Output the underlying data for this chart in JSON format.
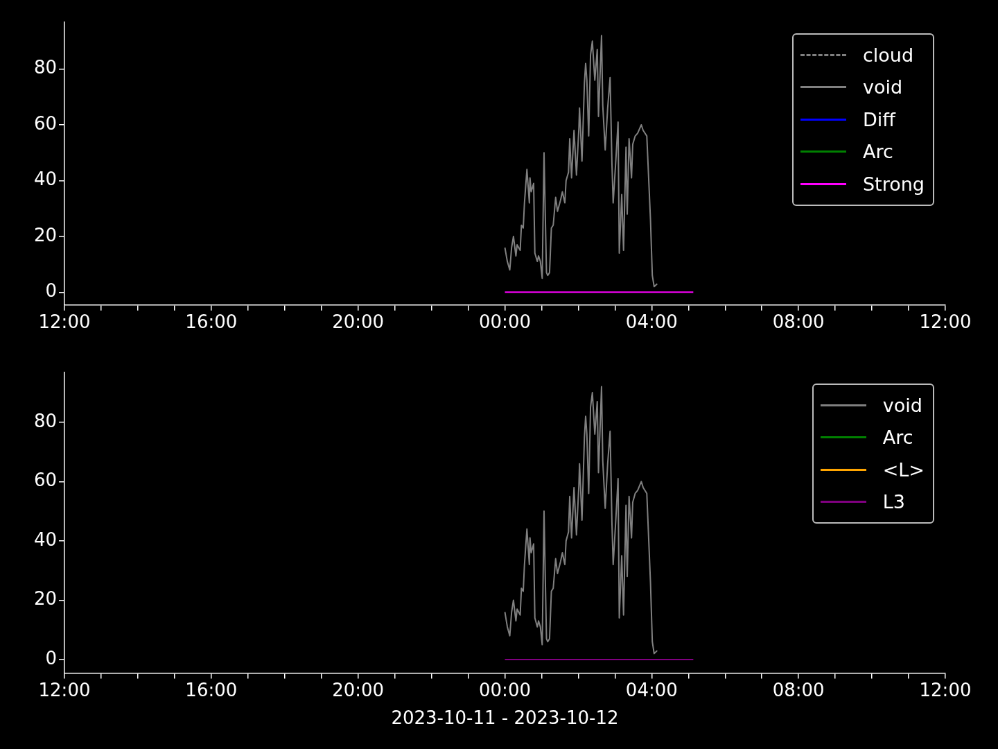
{
  "chart_data": [
    {
      "type": "line",
      "marker": "none",
      "grid": false,
      "legend": "top right",
      "xlim": [
        "2023-10-11T12:00",
        "2023-10-12T12:00"
      ],
      "xticks": [
        {
          "value": "2023-10-11T12:00",
          "label": "12:00"
        },
        {
          "value": "2023-10-11T13:00",
          "label": null
        },
        {
          "value": "2023-10-11T14:00",
          "label": null
        },
        {
          "value": "2023-10-11T15:00",
          "label": null
        },
        {
          "value": "2023-10-11T16:00",
          "label": "16:00"
        },
        {
          "value": "2023-10-11T17:00",
          "label": null
        },
        {
          "value": "2023-10-11T18:00",
          "label": null
        },
        {
          "value": "2023-10-11T19:00",
          "label": null
        },
        {
          "value": "2023-10-11T20:00",
          "label": "20:00"
        },
        {
          "value": "2023-10-11T21:00",
          "label": null
        },
        {
          "value": "2023-10-11T22:00",
          "label": null
        },
        {
          "value": "2023-10-11T23:00",
          "label": null
        },
        {
          "value": "2023-10-12T00:00",
          "label": "00:00"
        },
        {
          "value": "2023-10-12T01:00",
          "label": null
        },
        {
          "value": "2023-10-12T02:00",
          "label": null
        },
        {
          "value": "2023-10-12T03:00",
          "label": null
        },
        {
          "value": "2023-10-12T04:00",
          "label": "04:00"
        },
        {
          "value": "2023-10-12T05:00",
          "label": null
        },
        {
          "value": "2023-10-12T06:00",
          "label": null
        },
        {
          "value": "2023-10-12T07:00",
          "label": null
        },
        {
          "value": "2023-10-12T08:00",
          "label": "08:00"
        },
        {
          "value": "2023-10-12T09:00",
          "label": null
        },
        {
          "value": "2023-10-12T10:00",
          "label": null
        },
        {
          "value": "2023-10-12T11:00",
          "label": null
        },
        {
          "value": "2023-10-12T12:00",
          "label": "12:00"
        }
      ],
      "ylim": [
        -4.6,
        96.8
      ],
      "yticks": [
        0,
        20,
        40,
        60,
        80
      ],
      "x": [
        "2023-10-12T00:00",
        "2023-10-12T00:04",
        "2023-10-12T00:08",
        "2023-10-12T00:11",
        "2023-10-12T00:14",
        "2023-10-12T00:18",
        "2023-10-12T00:20",
        "2023-10-12T00:25",
        "2023-10-12T00:27",
        "2023-10-12T00:30",
        "2023-10-12T00:32",
        "2023-10-12T00:36",
        "2023-10-12T00:40",
        "2023-10-12T00:41",
        "2023-10-12T00:43",
        "2023-10-12T00:47",
        "2023-10-12T00:49",
        "2023-10-12T00:53",
        "2023-10-12T00:55",
        "2023-10-12T00:58",
        "2023-10-12T01:01",
        "2023-10-12T01:04",
        "2023-10-12T01:06",
        "2023-10-12T01:08",
        "2023-10-12T01:10",
        "2023-10-12T01:13",
        "2023-10-12T01:16",
        "2023-10-12T01:19",
        "2023-10-12T01:23",
        "2023-10-12T01:26",
        "2023-10-12T01:31",
        "2023-10-12T01:34",
        "2023-10-12T01:38",
        "2023-10-12T01:40",
        "2023-10-12T01:44",
        "2023-10-12T01:46",
        "2023-10-12T01:49",
        "2023-10-12T01:53",
        "2023-10-12T01:57",
        "2023-10-12T02:01",
        "2023-10-12T02:02",
        "2023-10-12T02:06",
        "2023-10-12T02:10",
        "2023-10-12T02:12",
        "2023-10-12T02:14",
        "2023-10-12T02:17",
        "2023-10-12T02:20",
        "2023-10-12T02:23",
        "2023-10-12T02:27",
        "2023-10-12T02:31",
        "2023-10-12T02:33",
        "2023-10-12T02:38",
        "2023-10-12T02:40",
        "2023-10-12T02:44",
        "2023-10-12T02:48",
        "2023-10-12T02:52",
        "2023-10-12T02:55",
        "2023-10-12T02:57",
        "2023-10-12T03:01",
        "2023-10-12T03:05",
        "2023-10-12T03:07",
        "2023-10-12T03:11",
        "2023-10-12T03:14",
        "2023-10-12T03:18",
        "2023-10-12T03:20",
        "2023-10-12T03:23",
        "2023-10-12T03:27",
        "2023-10-12T03:29",
        "2023-10-12T03:33",
        "2023-10-12T03:37",
        "2023-10-12T03:43",
        "2023-10-12T03:46",
        "2023-10-12T03:52",
        "2023-10-12T03:54",
        "2023-10-12T03:58",
        "2023-10-12T04:01",
        "2023-10-12T04:04",
        "2023-10-12T04:09"
      ],
      "series": [
        {
          "name": "cloud",
          "color": "#808080",
          "line_style": "dashed",
          "values": [
            null,
            null,
            null,
            null,
            null,
            null,
            null,
            null,
            null,
            null,
            null,
            null,
            null,
            null,
            null,
            null,
            null,
            null,
            null,
            null,
            null,
            null,
            null,
            null,
            null,
            null,
            null,
            null,
            null,
            null,
            null,
            null,
            null,
            null,
            null,
            null,
            null,
            null,
            null,
            null,
            null,
            null,
            null,
            null,
            null,
            null,
            null,
            null,
            null,
            null,
            null,
            null,
            null,
            null,
            null,
            null,
            null,
            null,
            null,
            null,
            null,
            null,
            null,
            null,
            null,
            null,
            null,
            null,
            null,
            null,
            null,
            null,
            null,
            null,
            null,
            null,
            null,
            null
          ]
        },
        {
          "name": "void",
          "color": "#808080",
          "values": [
            16,
            11,
            8,
            16,
            20,
            13,
            17,
            15,
            24,
            23,
            32,
            44,
            32,
            41,
            36,
            39,
            14,
            11,
            13,
            11,
            5,
            50,
            28,
            7,
            6,
            7,
            23,
            24,
            34,
            29,
            33,
            36,
            32,
            40,
            43,
            55,
            41,
            58,
            42,
            59,
            66,
            47,
            75,
            82,
            76,
            56,
            85,
            90,
            76,
            87,
            63,
            92,
            67,
            51,
            66,
            77,
            46,
            32,
            46,
            61,
            14,
            35,
            15,
            52,
            28,
            55,
            41,
            53,
            56,
            57,
            60,
            58,
            56,
            46,
            26,
            6,
            2,
            3
          ]
        },
        {
          "name": "Diff",
          "color": "#0000ff",
          "values": [
            null,
            null,
            null,
            null,
            null,
            null,
            null,
            null,
            null,
            null,
            null,
            null,
            null,
            null,
            null,
            null,
            null,
            null,
            null,
            null,
            null,
            null,
            null,
            null,
            null,
            null,
            null,
            null,
            null,
            null,
            null,
            null,
            null,
            null,
            null,
            null,
            null,
            null,
            null,
            null,
            null,
            null,
            null,
            null,
            null,
            null,
            null,
            null,
            null,
            null,
            null,
            null,
            null,
            null,
            null,
            null,
            null,
            null,
            null,
            null,
            null,
            null,
            null,
            null,
            null,
            null,
            null,
            null,
            null,
            null,
            null,
            null,
            null,
            null,
            null,
            null,
            null,
            null
          ]
        },
        {
          "name": "Arc",
          "color": "#008000",
          "values": [
            null,
            null,
            null,
            null,
            null,
            null,
            null,
            null,
            null,
            null,
            null,
            null,
            null,
            null,
            null,
            null,
            null,
            null,
            null,
            null,
            null,
            null,
            null,
            null,
            null,
            null,
            null,
            null,
            null,
            null,
            null,
            null,
            null,
            null,
            null,
            null,
            null,
            null,
            null,
            null,
            null,
            null,
            null,
            null,
            null,
            null,
            null,
            null,
            null,
            null,
            null,
            null,
            null,
            null,
            null,
            null,
            null,
            null,
            null,
            null,
            null,
            null,
            null,
            null,
            null,
            null,
            null,
            null,
            null,
            null,
            null,
            null,
            null,
            null,
            null,
            null,
            null,
            null
          ]
        },
        {
          "name": "Strong",
          "color": "#ff00ff",
          "x": [
            "2023-10-12T00:00",
            "2023-10-12T05:08"
          ],
          "values": [
            0,
            0
          ]
        }
      ]
    },
    {
      "type": "line",
      "marker": "none",
      "grid": false,
      "legend": "top right",
      "xlabel": "2023-10-11 - 2023-10-12",
      "xlim": [
        "2023-10-11T12:00",
        "2023-10-12T12:00"
      ],
      "xticks": [
        {
          "value": "2023-10-11T12:00",
          "label": "12:00"
        },
        {
          "value": "2023-10-11T13:00",
          "label": null
        },
        {
          "value": "2023-10-11T14:00",
          "label": null
        },
        {
          "value": "2023-10-11T15:00",
          "label": null
        },
        {
          "value": "2023-10-11T16:00",
          "label": "16:00"
        },
        {
          "value": "2023-10-11T17:00",
          "label": null
        },
        {
          "value": "2023-10-11T18:00",
          "label": null
        },
        {
          "value": "2023-10-11T19:00",
          "label": null
        },
        {
          "value": "2023-10-11T20:00",
          "label": "20:00"
        },
        {
          "value": "2023-10-11T21:00",
          "label": null
        },
        {
          "value": "2023-10-11T22:00",
          "label": null
        },
        {
          "value": "2023-10-11T23:00",
          "label": null
        },
        {
          "value": "2023-10-12T00:00",
          "label": "00:00"
        },
        {
          "value": "2023-10-12T01:00",
          "label": null
        },
        {
          "value": "2023-10-12T02:00",
          "label": null
        },
        {
          "value": "2023-10-12T03:00",
          "label": null
        },
        {
          "value": "2023-10-12T04:00",
          "label": "04:00"
        },
        {
          "value": "2023-10-12T05:00",
          "label": null
        },
        {
          "value": "2023-10-12T06:00",
          "label": null
        },
        {
          "value": "2023-10-12T07:00",
          "label": null
        },
        {
          "value": "2023-10-12T08:00",
          "label": "08:00"
        },
        {
          "value": "2023-10-12T09:00",
          "label": null
        },
        {
          "value": "2023-10-12T10:00",
          "label": null
        },
        {
          "value": "2023-10-12T11:00",
          "label": null
        },
        {
          "value": "2023-10-12T12:00",
          "label": "12:00"
        }
      ],
      "ylim": [
        -4.6,
        96.8
      ],
      "yticks": [
        0,
        20,
        40,
        60,
        80
      ],
      "x": [
        "2023-10-12T00:00",
        "2023-10-12T00:04",
        "2023-10-12T00:08",
        "2023-10-12T00:11",
        "2023-10-12T00:14",
        "2023-10-12T00:18",
        "2023-10-12T00:20",
        "2023-10-12T00:25",
        "2023-10-12T00:27",
        "2023-10-12T00:30",
        "2023-10-12T00:32",
        "2023-10-12T00:36",
        "2023-10-12T00:40",
        "2023-10-12T00:41",
        "2023-10-12T00:43",
        "2023-10-12T00:47",
        "2023-10-12T00:49",
        "2023-10-12T00:53",
        "2023-10-12T00:55",
        "2023-10-12T00:58",
        "2023-10-12T01:01",
        "2023-10-12T01:04",
        "2023-10-12T01:06",
        "2023-10-12T01:08",
        "2023-10-12T01:10",
        "2023-10-12T01:13",
        "2023-10-12T01:16",
        "2023-10-12T01:19",
        "2023-10-12T01:23",
        "2023-10-12T01:26",
        "2023-10-12T01:31",
        "2023-10-12T01:34",
        "2023-10-12T01:38",
        "2023-10-12T01:40",
        "2023-10-12T01:44",
        "2023-10-12T01:46",
        "2023-10-12T01:49",
        "2023-10-12T01:53",
        "2023-10-12T01:57",
        "2023-10-12T02:01",
        "2023-10-12T02:02",
        "2023-10-12T02:06",
        "2023-10-12T02:10",
        "2023-10-12T02:12",
        "2023-10-12T02:14",
        "2023-10-12T02:17",
        "2023-10-12T02:20",
        "2023-10-12T02:23",
        "2023-10-12T02:27",
        "2023-10-12T02:31",
        "2023-10-12T02:33",
        "2023-10-12T02:38",
        "2023-10-12T02:40",
        "2023-10-12T02:44",
        "2023-10-12T02:48",
        "2023-10-12T02:52",
        "2023-10-12T02:55",
        "2023-10-12T02:57",
        "2023-10-12T03:01",
        "2023-10-12T03:05",
        "2023-10-12T03:07",
        "2023-10-12T03:11",
        "2023-10-12T03:14",
        "2023-10-12T03:18",
        "2023-10-12T03:20",
        "2023-10-12T03:23",
        "2023-10-12T03:27",
        "2023-10-12T03:29",
        "2023-10-12T03:33",
        "2023-10-12T03:37",
        "2023-10-12T03:43",
        "2023-10-12T03:46",
        "2023-10-12T03:52",
        "2023-10-12T03:54",
        "2023-10-12T03:58",
        "2023-10-12T04:01",
        "2023-10-12T04:04",
        "2023-10-12T04:09"
      ],
      "series": [
        {
          "name": "void",
          "color": "#808080",
          "values": [
            16,
            11,
            8,
            16,
            20,
            13,
            17,
            15,
            24,
            23,
            32,
            44,
            32,
            41,
            36,
            39,
            14,
            11,
            13,
            11,
            5,
            50,
            28,
            7,
            6,
            7,
            23,
            24,
            34,
            29,
            33,
            36,
            32,
            40,
            43,
            55,
            41,
            58,
            42,
            59,
            66,
            47,
            75,
            82,
            76,
            56,
            85,
            90,
            76,
            87,
            63,
            92,
            67,
            51,
            66,
            77,
            46,
            32,
            46,
            61,
            14,
            35,
            15,
            52,
            28,
            55,
            41,
            53,
            56,
            57,
            60,
            58,
            56,
            46,
            26,
            6,
            2,
            3
          ]
        },
        {
          "name": "Arc",
          "color": "#008000",
          "values": [
            null,
            null,
            null,
            null,
            null,
            null,
            null,
            null,
            null,
            null,
            null,
            null,
            null,
            null,
            null,
            null,
            null,
            null,
            null,
            null,
            null,
            null,
            null,
            null,
            null,
            null,
            null,
            null,
            null,
            null,
            null,
            null,
            null,
            null,
            null,
            null,
            null,
            null,
            null,
            null,
            null,
            null,
            null,
            null,
            null,
            null,
            null,
            null,
            null,
            null,
            null,
            null,
            null,
            null,
            null,
            null,
            null,
            null,
            null,
            null,
            null,
            null,
            null,
            null,
            null,
            null,
            null,
            null,
            null,
            null,
            null,
            null,
            null,
            null,
            null,
            null,
            null,
            null
          ]
        },
        {
          "name": "<L>",
          "color": "#ffa500",
          "values": [
            null,
            null,
            null,
            null,
            null,
            null,
            null,
            null,
            null,
            null,
            null,
            null,
            null,
            null,
            null,
            null,
            null,
            null,
            null,
            null,
            null,
            null,
            null,
            null,
            null,
            null,
            null,
            null,
            null,
            null,
            null,
            null,
            null,
            null,
            null,
            null,
            null,
            null,
            null,
            null,
            null,
            null,
            null,
            null,
            null,
            null,
            null,
            null,
            null,
            null,
            null,
            null,
            null,
            null,
            null,
            null,
            null,
            null,
            null,
            null,
            null,
            null,
            null,
            null,
            null,
            null,
            null,
            null,
            null,
            null,
            null,
            null,
            null,
            null,
            null,
            null,
            null,
            null
          ]
        },
        {
          "name": "L3",
          "color": "#800080",
          "x": [
            "2023-10-12T00:00",
            "2023-10-12T05:08"
          ],
          "values": [
            0,
            0
          ]
        }
      ]
    }
  ]
}
